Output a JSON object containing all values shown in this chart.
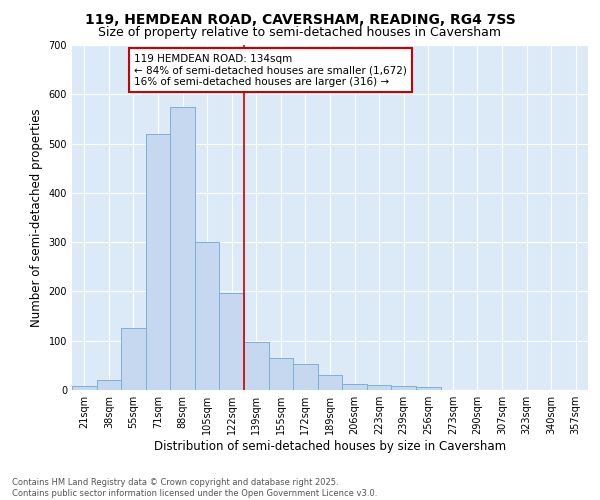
{
  "title": "119, HEMDEAN ROAD, CAVERSHAM, READING, RG4 7SS",
  "subtitle": "Size of property relative to semi-detached houses in Caversham",
  "xlabel": "Distribution of semi-detached houses by size in Caversham",
  "ylabel": "Number of semi-detached properties",
  "categories": [
    "21sqm",
    "38sqm",
    "55sqm",
    "71sqm",
    "88sqm",
    "105sqm",
    "122sqm",
    "139sqm",
    "155sqm",
    "172sqm",
    "189sqm",
    "206sqm",
    "223sqm",
    "239sqm",
    "256sqm",
    "273sqm",
    "290sqm",
    "307sqm",
    "323sqm",
    "340sqm",
    "357sqm"
  ],
  "values": [
    8,
    20,
    125,
    520,
    575,
    300,
    197,
    98,
    65,
    52,
    30,
    13,
    10,
    8,
    6,
    0,
    0,
    0,
    0,
    0,
    0
  ],
  "bar_color": "#c5d8f0",
  "bar_edge_color": "#7ab0d8",
  "vline_x": 7.0,
  "annotation_title": "119 HEMDEAN ROAD: 134sqm",
  "annotation_line1": "← 84% of semi-detached houses are smaller (1,672)",
  "annotation_line2": "16% of semi-detached houses are larger (316) →",
  "annotation_box_color": "#ffffff",
  "annotation_box_edge": "#cc0000",
  "vline_color": "#cc0000",
  "ylim": [
    0,
    700
  ],
  "yticks": [
    0,
    100,
    200,
    300,
    400,
    500,
    600,
    700
  ],
  "bg_color": "#dce9f7",
  "footer1": "Contains HM Land Registry data © Crown copyright and database right 2025.",
  "footer2": "Contains public sector information licensed under the Open Government Licence v3.0.",
  "title_fontsize": 10,
  "subtitle_fontsize": 9,
  "tick_fontsize": 7,
  "axis_label_fontsize": 8.5,
  "annotation_fontsize": 7.5,
  "footer_fontsize": 6
}
